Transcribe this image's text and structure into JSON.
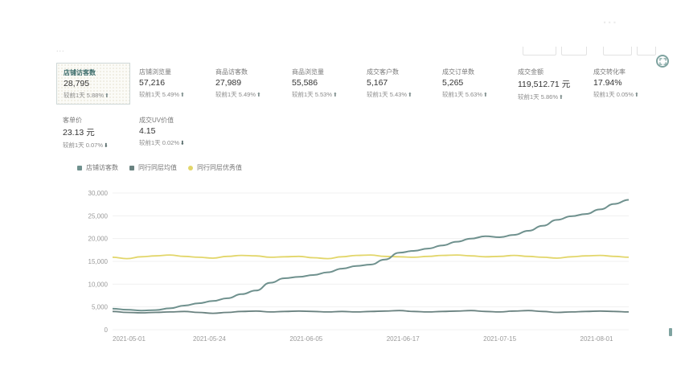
{
  "header": {
    "faded_title": "...",
    "logo_text": "...",
    "expand_icon": "expand-icon"
  },
  "metrics": [
    {
      "label": "店铺访客数",
      "value": "28,795",
      "compare": "较前1天 5.88%",
      "trend": "up"
    },
    {
      "label": "店铺浏览量",
      "value": "57,216",
      "compare": "较前1天 5.49%",
      "trend": "up"
    },
    {
      "label": "商品访客数",
      "value": "27,989",
      "compare": "较前1天 5.49%",
      "trend": "up"
    },
    {
      "label": "商品浏览量",
      "value": "55,586",
      "compare": "较前1天 5.53%",
      "trend": "up"
    },
    {
      "label": "成交客户数",
      "value": "5,167",
      "compare": "较前1天 5.43%",
      "trend": "up"
    },
    {
      "label": "成交订单数",
      "value": "5,265",
      "compare": "较前1天 5.63%",
      "trend": "up"
    },
    {
      "label": "成交金额",
      "value": "119,512.71 元",
      "compare": "较前1天 5.86%",
      "trend": "up"
    },
    {
      "label": "成交转化率",
      "value": "17.94%",
      "compare": "较前1天 0.05%",
      "trend": "up"
    },
    {
      "label": "客单价",
      "value": "23.13 元",
      "compare": "较前1天 0.07%",
      "trend": "down"
    },
    {
      "label": "成交UV价值",
      "value": "4.15",
      "compare": "较前1天 0.02%",
      "trend": "down"
    }
  ],
  "colors": {
    "series_main": "#6f918e",
    "series_peer": "#6a8280",
    "series_peer_best": "#e2d66a",
    "grid": "#f0f0f0",
    "axis_text": "#9a9a9a"
  },
  "chart_data": {
    "type": "line",
    "legend_position": "top-left",
    "grid": true,
    "ylim": [
      0,
      30000
    ],
    "yticks": [
      "30,000",
      "25,000",
      "20,000",
      "15,000",
      "10,000",
      "5,000",
      "0"
    ],
    "xticks": [
      "2021-05-01",
      "2021-05-24",
      "2021-06-05",
      "2021-06-17",
      "2021-07-15",
      "2021-08-01"
    ],
    "series": [
      {
        "name": "店铺访客数",
        "color": "#6f918e",
        "values": [
          4600,
          4400,
          4200,
          4300,
          4700,
          5300,
          5800,
          6300,
          6900,
          7800,
          8600,
          10300,
          11300,
          11600,
          12000,
          12600,
          13400,
          14000,
          14300,
          15400,
          16900,
          17300,
          17800,
          18500,
          19300,
          20000,
          20500,
          20300,
          20800,
          21700,
          22800,
          24100,
          24900,
          25400,
          26400,
          27600,
          28500
        ]
      },
      {
        "name": "同行同层均值",
        "color": "#6a8280",
        "values": [
          4000,
          3800,
          3700,
          3800,
          3900,
          4000,
          3800,
          3600,
          3800,
          4000,
          4100,
          3900,
          4000,
          4100,
          4000,
          3900,
          4000,
          3900,
          4000,
          4100,
          4200,
          4000,
          3900,
          4000,
          4100,
          4200,
          4000,
          3900,
          4100,
          4200,
          4000,
          3800,
          3900,
          4000,
          4100,
          4000,
          3900
        ]
      },
      {
        "name": "同行同层优秀值",
        "color": "#e2d66a",
        "values": [
          15900,
          15600,
          16000,
          16200,
          16400,
          16100,
          15900,
          15700,
          16100,
          16300,
          16200,
          15900,
          16000,
          16100,
          15800,
          15600,
          16000,
          16300,
          16400,
          16100,
          16000,
          15900,
          16100,
          16300,
          16400,
          16200,
          16000,
          16100,
          16300,
          16100,
          15900,
          15700,
          16000,
          16200,
          16300,
          16100,
          15900
        ]
      }
    ]
  }
}
